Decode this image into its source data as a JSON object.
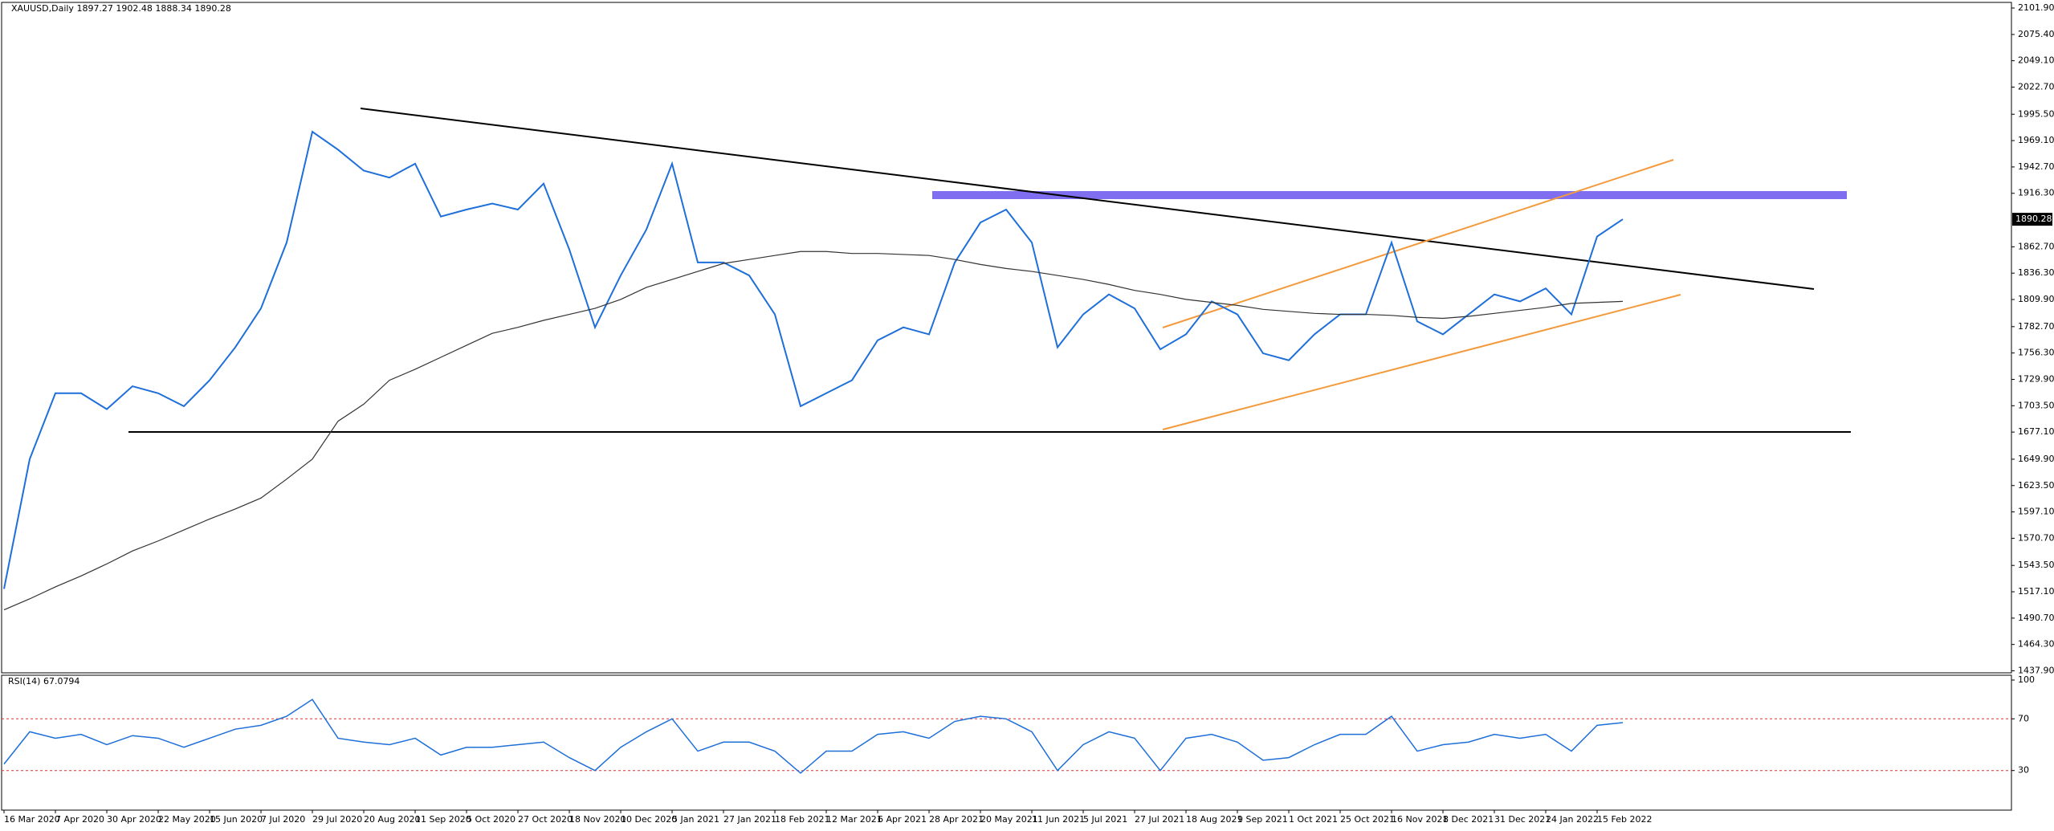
{
  "chart_data": {
    "type": "line",
    "title": "XAUUSD,Daily  1897.27 1902.48 1888.34 1890.28",
    "categories": [
      "16 Mar 2020",
      null,
      "7 Apr 2020",
      null,
      "30 Apr 2020",
      null,
      "22 May 2020",
      null,
      "15 Jun 2020",
      null,
      "7 Jul 2020",
      null,
      "29 Jul 2020",
      null,
      "20 Aug 2020",
      null,
      "11 Sep 2020",
      null,
      "5 Oct 2020",
      null,
      "27 Oct 2020",
      null,
      "18 Nov 2020",
      null,
      "10 Dec 2020",
      null,
      "5 Jan 2021",
      null,
      "27 Jan 2021",
      null,
      "18 Feb 2021",
      null,
      "12 Mar 2021",
      null,
      "6 Apr 2021",
      null,
      "28 Apr 2021",
      null,
      "20 May 2021",
      null,
      "11 Jun 2021",
      null,
      "5 Jul 2021",
      null,
      "27 Jul 2021",
      null,
      "18 Aug 2021",
      null,
      "9 Sep 2021",
      null,
      "1 Oct 2021",
      null,
      "25 Oct 2021",
      null,
      "16 Nov 2021",
      null,
      "8 Dec 2021",
      null,
      "31 Dec 2021",
      null,
      "24 Jan 2022",
      null,
      "15 Feb 2022",
      null
    ],
    "series": [
      {
        "color": "#1e6fd9",
        "values": [
          1520,
          1650,
          1716,
          1716,
          1700,
          1723,
          1716,
          1703,
          1729,
          1762,
          1801,
          1867,
          1978,
          1960,
          1939,
          1932,
          1946,
          1893,
          1900,
          1906,
          1900,
          1926,
          1860,
          1782,
          1834,
          1880,
          1946,
          1847,
          1847,
          1834,
          1795,
          1703,
          1716,
          1729,
          1769,
          1782,
          1775,
          1847,
          1887,
          1900,
          1867,
          1762,
          1795,
          1815,
          1801,
          1760,
          1775,
          1808,
          1795,
          1756,
          1749,
          1775,
          1795,
          1795,
          1867,
          1788,
          1775,
          1795,
          1815,
          1808,
          1821,
          1795,
          1873,
          1890.28
        ]
      },
      {
        "color": "#333333",
        "values": [
          1499,
          1510,
          1522,
          1533,
          1545,
          1558,
          1568,
          1579,
          1590,
          1600,
          1611,
          1630,
          1650,
          1688,
          1705,
          1729,
          1740,
          1752,
          1764,
          1776,
          1782,
          1789,
          1795,
          1801,
          1810,
          1822,
          1830,
          1838,
          1846,
          1850,
          1854,
          1858,
          1858,
          1856,
          1856,
          1855,
          1854,
          1850,
          1845,
          1841,
          1838,
          1834,
          1830,
          1825,
          1819,
          1815,
          1810,
          1807,
          1804,
          1800,
          1798,
          1796,
          1795,
          1795,
          1794,
          1792,
          1791,
          1793,
          1796,
          1799,
          1802,
          1806,
          1807,
          1808
        ]
      }
    ],
    "ylim": [
      1437.9,
      2101.9
    ],
    "yticks": [
      {
        "value": 2101.9,
        "label": "2101.90"
      },
      {
        "value": 2075.4,
        "label": "2075.40"
      },
      {
        "value": 2049.1,
        "label": "2049.10"
      },
      {
        "value": 2022.7,
        "label": "2022.70"
      },
      {
        "value": 1995.5,
        "label": "1995.50"
      },
      {
        "value": 1969.1,
        "label": "1969.10"
      },
      {
        "value": 1942.7,
        "label": "1942.70"
      },
      {
        "value": 1916.3,
        "label": "1916.30"
      },
      {
        "value": 1862.7,
        "label": "1862.70"
      },
      {
        "value": 1836.3,
        "label": "1836.30"
      },
      {
        "value": 1809.9,
        "label": "1809.90"
      },
      {
        "value": 1782.7,
        "label": "1782.70"
      },
      {
        "value": 1756.3,
        "label": "1756.30"
      },
      {
        "value": 1729.9,
        "label": "1729.90"
      },
      {
        "value": 1703.5,
        "label": "1703.50"
      },
      {
        "value": 1677.1,
        "label": "1677.10"
      },
      {
        "value": 1649.9,
        "label": "1649.90"
      },
      {
        "value": 1623.5,
        "label": "1623.50"
      },
      {
        "value": 1597.1,
        "label": "1597.10"
      },
      {
        "value": 1570.7,
        "label": "1570.70"
      },
      {
        "value": 1543.5,
        "label": "1543.50"
      },
      {
        "value": 1517.1,
        "label": "1517.10"
      },
      {
        "value": 1490.7,
        "label": "1490.70"
      },
      {
        "value": 1464.3,
        "label": "1464.30"
      },
      {
        "value": 1437.9,
        "label": "1437.90"
      }
    ],
    "last_price": 1890.28,
    "rsi": {
      "title": "RSI(14) 67.0794",
      "color": "#1e6fd9",
      "level_color": "#e03030",
      "values": [
        35,
        60,
        55,
        58,
        50,
        57,
        55,
        48,
        55,
        62,
        65,
        72,
        85,
        55,
        52,
        50,
        55,
        42,
        48,
        48,
        50,
        52,
        40,
        30,
        48,
        60,
        70,
        45,
        52,
        52,
        45,
        28,
        45,
        45,
        58,
        60,
        55,
        68,
        72,
        70,
        60,
        30,
        50,
        60,
        55,
        30,
        55,
        58,
        52,
        38,
        40,
        50,
        58,
        58,
        72,
        45,
        50,
        52,
        58,
        55,
        58,
        45,
        65,
        67.0794
      ],
      "ylim": [
        0,
        100
      ],
      "yticks": [
        100,
        70,
        30
      ],
      "levels": [
        70,
        30
      ]
    }
  }
}
